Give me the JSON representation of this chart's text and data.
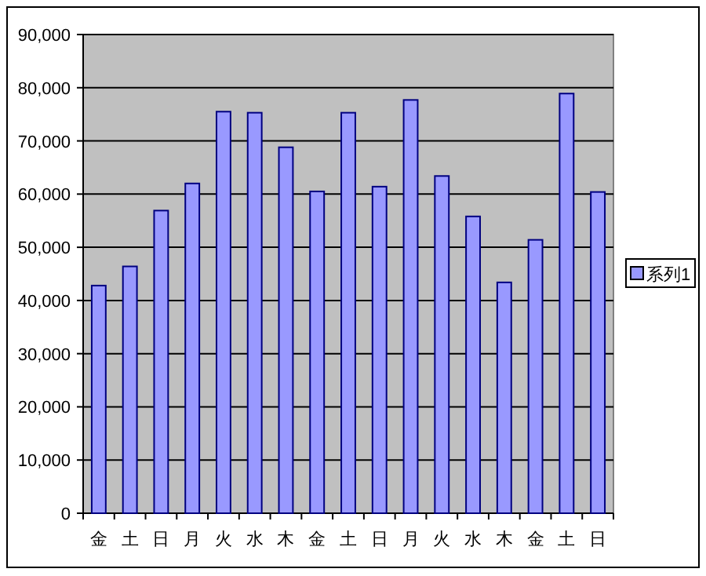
{
  "chart_data": {
    "type": "bar",
    "categories": [
      "金",
      "土",
      "日",
      "月",
      "火",
      "水",
      "木",
      "金",
      "土",
      "日",
      "月",
      "火",
      "水",
      "木",
      "金",
      "土",
      "日"
    ],
    "series": [
      {
        "name": "系列1",
        "color": "#9999ff",
        "values": [
          42800,
          46400,
          56900,
          62000,
          75500,
          75300,
          68800,
          60500,
          75300,
          61400,
          77700,
          63400,
          55800,
          43400,
          51400,
          78900,
          60400
        ]
      }
    ],
    "ylim": [
      0,
      90000
    ],
    "yticks": [
      {
        "value": 0,
        "label": "0"
      },
      {
        "value": 10000,
        "label": "10,000"
      },
      {
        "value": 20000,
        "label": "20,000"
      },
      {
        "value": 30000,
        "label": "30,000"
      },
      {
        "value": 40000,
        "label": "40,000"
      },
      {
        "value": 50000,
        "label": "50,000"
      },
      {
        "value": 60000,
        "label": "60,000"
      },
      {
        "value": 70000,
        "label": "70,000"
      },
      {
        "value": 80000,
        "label": "80,000"
      },
      {
        "value": 90000,
        "label": "90,000"
      }
    ],
    "grid": "y",
    "legend": "right"
  }
}
